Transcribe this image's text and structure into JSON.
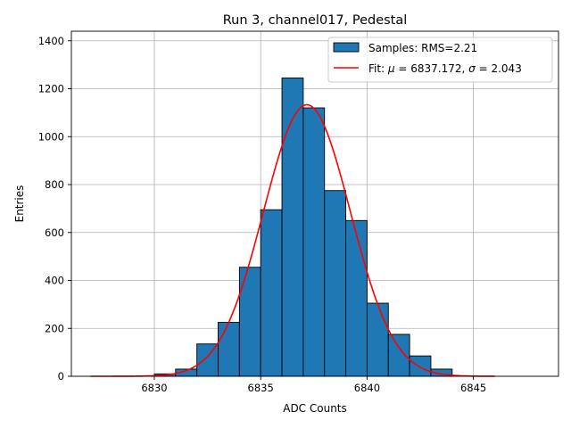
{
  "chart_data": {
    "type": "bar",
    "title": "Run 3, channel017, Pedestal",
    "xlabel": "ADC Counts",
    "ylabel": "Entries",
    "xlim": [
      6826.1,
      6849.0
    ],
    "ylim": [
      0,
      1440
    ],
    "xticks": [
      6830,
      6835,
      6840,
      6845
    ],
    "yticks": [
      0,
      200,
      400,
      600,
      800,
      1000,
      1200,
      1400
    ],
    "grid": true,
    "legend_position": "top-right",
    "histogram": {
      "name": "Samples: RMS=2.21",
      "bin_edges": [
        6827,
        6828,
        6829,
        6830,
        6831,
        6832,
        6833,
        6834,
        6835,
        6836,
        6837,
        6838,
        6839,
        6840,
        6841,
        6842,
        6843,
        6844,
        6845,
        6846,
        6847,
        6848
      ],
      "counts": [
        0,
        0,
        0,
        10,
        30,
        135,
        225,
        455,
        695,
        1245,
        1120,
        775,
        650,
        305,
        175,
        85,
        30,
        0,
        0,
        0,
        0
      ],
      "color": "#1f77b4",
      "edgecolor": "#000000"
    },
    "fit": {
      "name_prefix": "Fit: ",
      "mu_symbol": "μ",
      "mu": 6837.172,
      "sigma_symbol": "σ",
      "sigma": 2.043,
      "amplitude": 1133,
      "x_range": [
        6827,
        6846
      ],
      "color": "#ff0000"
    }
  }
}
